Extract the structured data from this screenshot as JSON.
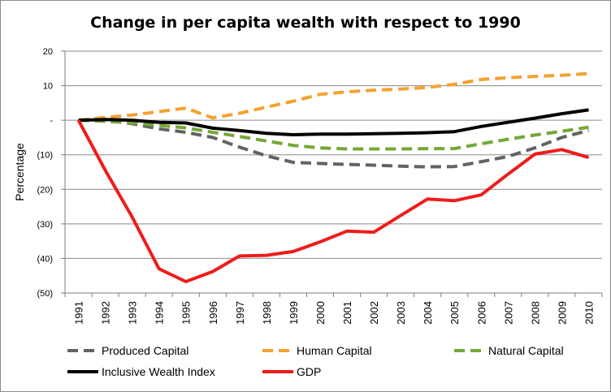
{
  "chart_data": {
    "type": "line",
    "title": "Change in per capita wealth with respect to  1990",
    "xlabel": "",
    "ylabel": "Percentage",
    "x": [
      "1991",
      "1992",
      "1993",
      "1994",
      "1995",
      "1996",
      "1997",
      "1998",
      "1999",
      "2000",
      "2001",
      "2002",
      "2003",
      "2004",
      "2005",
      "2006",
      "2007",
      "2008",
      "2009",
      "2010"
    ],
    "ylim": [
      -50,
      20
    ],
    "yticks": [
      20,
      10,
      0,
      -10,
      -20,
      -30,
      -40,
      -50
    ],
    "ytick_labels": [
      "20",
      "10",
      "-",
      "(10)",
      "(20)",
      "(30)",
      "(40)",
      "(50)"
    ],
    "grid": true,
    "legend_position": "bottom",
    "series": [
      {
        "name": "Produced Capital",
        "color": "#636363",
        "style": "dashed",
        "values": [
          0,
          0,
          -1,
          -2.5,
          -3.5,
          -5,
          -7.8,
          -10.3,
          -12.2,
          -12.5,
          -12.8,
          -13.0,
          -13.3,
          -13.5,
          -13.4,
          -12.0,
          -10.5,
          -8.0,
          -5.0,
          -3.0
        ]
      },
      {
        "name": "Human Capital",
        "color": "#F5A130",
        "style": "dashed",
        "values": [
          0,
          0.8,
          1.5,
          2.5,
          3.5,
          0.7,
          2.0,
          3.8,
          5.5,
          7.5,
          8.2,
          8.7,
          9.0,
          9.5,
          10.4,
          11.8,
          12.3,
          12.7,
          13.0,
          13.5
        ]
      },
      {
        "name": "Natural Capital",
        "color": "#77A636",
        "style": "dashed",
        "values": [
          0,
          -0.3,
          -0.8,
          -1.5,
          -2.2,
          -3.5,
          -4.7,
          -6.0,
          -7.3,
          -8.0,
          -8.3,
          -8.3,
          -8.3,
          -8.2,
          -8.2,
          -6.8,
          -5.5,
          -4.3,
          -3.2,
          -2.0
        ]
      },
      {
        "name": "Inclusive Wealth Index",
        "color": "#000000",
        "style": "solid",
        "values": [
          0,
          0.2,
          0,
          -0.6,
          -0.8,
          -2.3,
          -3.0,
          -3.8,
          -4.2,
          -4.0,
          -4.0,
          -3.9,
          -3.8,
          -3.6,
          -3.3,
          -1.8,
          -0.6,
          0.6,
          1.9,
          3.0
        ]
      },
      {
        "name": "GDP",
        "color": "#EE1C1C",
        "style": "solid",
        "values": [
          0,
          -14.5,
          -28,
          -43,
          -46.7,
          -43.8,
          -39.3,
          -39.1,
          -38.0,
          -35.2,
          -32.1,
          -32.4,
          -27.6,
          -22.8,
          -23.3,
          -21.6,
          -15.6,
          -9.8,
          -8.5,
          -10.8
        ]
      }
    ]
  }
}
